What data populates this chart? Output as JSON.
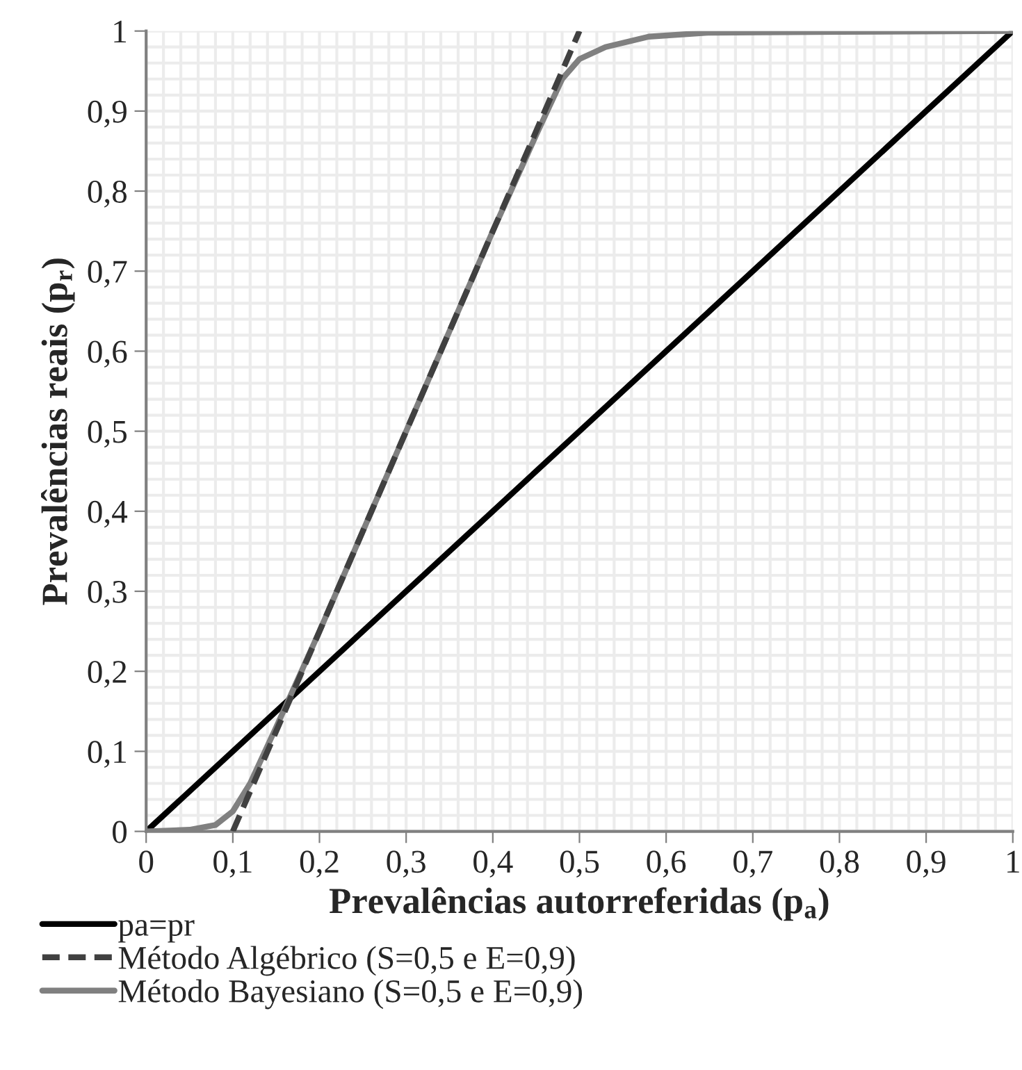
{
  "chart_data": {
    "type": "line",
    "xlabel": "Prevalências autorreferidas (p$_{a}$)",
    "ylabel": "Prevalências reais (p$_{r}$)",
    "xlim": [
      0,
      1
    ],
    "ylim": [
      0,
      1
    ],
    "xticks": [
      0,
      {
        "value": 0.1,
        "label": "0,1"
      },
      {
        "value": 0.2,
        "label": "0,2"
      },
      {
        "value": 0.3,
        "label": "0,3"
      },
      {
        "value": 0.4,
        "label": "0,4"
      },
      {
        "value": 0.5,
        "label": "0,5"
      },
      {
        "value": 0.6,
        "label": "0,6"
      },
      {
        "value": 0.7,
        "label": "0,7"
      },
      {
        "value": 0.8,
        "label": "0,8"
      },
      {
        "value": 0.9,
        "label": "0,9"
      },
      1
    ],
    "yticks": [
      0,
      {
        "value": 0.1,
        "label": "0,1"
      },
      {
        "value": 0.2,
        "label": "0,2"
      },
      {
        "value": 0.3,
        "label": "0,3"
      },
      {
        "value": 0.4,
        "label": "0,4"
      },
      {
        "value": 0.5,
        "label": "0,5"
      },
      {
        "value": 0.6,
        "label": "0,6"
      },
      {
        "value": 0.7,
        "label": "0,7"
      },
      {
        "value": 0.8,
        "label": "0,8"
      },
      {
        "value": 0.9,
        "label": "0,9"
      },
      1
    ],
    "grid": true,
    "legend": "bottom left",
    "marker": "none",
    "series": [
      {
        "name": "pa=pr",
        "color": "#000000",
        "line_style": "solid",
        "x": [
          0,
          1
        ],
        "values": [
          0,
          1
        ]
      },
      {
        "name": "Método Algébrico (S=0,5 e E=0,9)",
        "color": "#404040",
        "line_style": "dashed",
        "x": [
          0.1,
          0.5
        ],
        "values": [
          0,
          1
        ]
      },
      {
        "name": "Método Bayesiano (S=0,5 e E=0,9)",
        "color": "#808080",
        "line_style": "solid",
        "x": [
          0,
          0.05,
          0.08,
          0.1,
          0.12,
          0.15,
          0.2,
          0.3,
          0.4,
          0.45,
          0.48,
          0.5,
          0.53,
          0.58,
          0.65,
          0.8,
          1
        ],
        "values": [
          0,
          0.002,
          0.008,
          0.025,
          0.06,
          0.13,
          0.25,
          0.5,
          0.75,
          0.87,
          0.94,
          0.965,
          0.98,
          0.993,
          0.998,
          0.999,
          1
        ]
      }
    ]
  }
}
